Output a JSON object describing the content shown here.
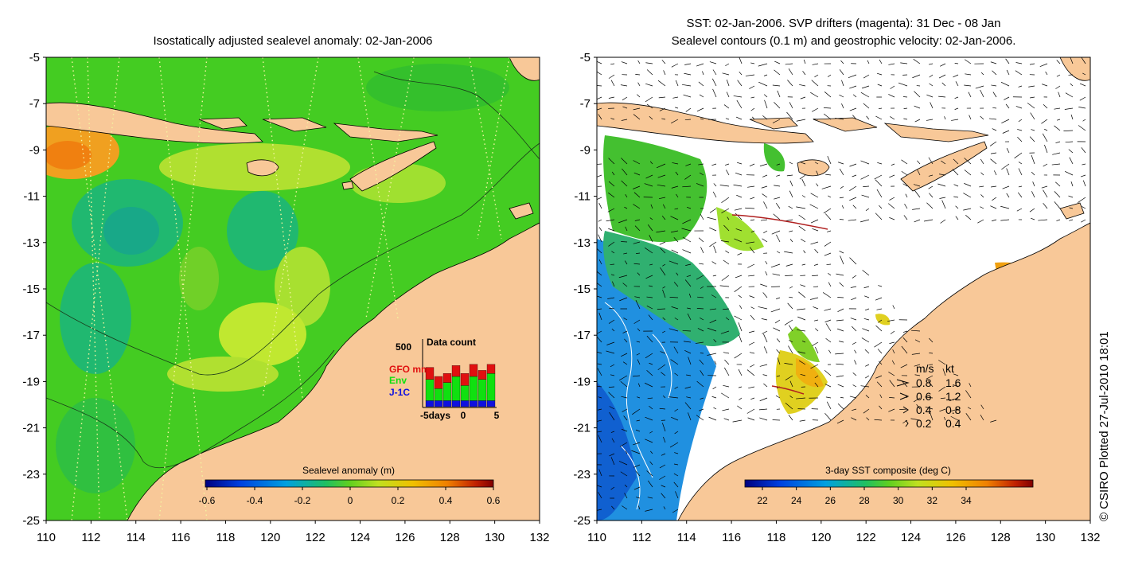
{
  "left_panel": {
    "title": "Isostatically adjusted sealevel anomaly: 02-Jan-2006",
    "y_ticks": [
      "-5",
      "-7",
      "-9",
      "-11",
      "-13",
      "-15",
      "-17",
      "-19",
      "-21",
      "-23",
      "-25"
    ],
    "x_ticks": [
      "110",
      "112",
      "114",
      "116",
      "118",
      "120",
      "122",
      "124",
      "126",
      "128",
      "130",
      "132"
    ],
    "colorbar": {
      "label": "Sealevel anomaly (m)",
      "ticks": [
        "-0.6",
        "-0.4",
        "-0.2",
        "0",
        "0.2",
        "0.4",
        "0.6"
      ]
    },
    "inset": {
      "axis_max": "500",
      "title": "Data count",
      "series": [
        {
          "name": "GFO mm",
          "color": "#e01010"
        },
        {
          "name": "Env",
          "color": "#10e010"
        },
        {
          "name": "J-1C",
          "color": "#1010e0"
        }
      ],
      "x_labels": [
        "-5days",
        "0",
        "5"
      ],
      "bars": [
        {
          "j1c": 0.1,
          "env": 0.35,
          "gfo": 0.2
        },
        {
          "j1c": 0.1,
          "env": 0.2,
          "gfo": 0.2
        },
        {
          "j1c": 0.1,
          "env": 0.3,
          "gfo": 0.15
        },
        {
          "j1c": 0.1,
          "env": 0.4,
          "gfo": 0.18
        },
        {
          "j1c": 0.1,
          "env": 0.25,
          "gfo": 0.2
        },
        {
          "j1c": 0.1,
          "env": 0.4,
          "gfo": 0.2
        },
        {
          "j1c": 0.1,
          "env": 0.35,
          "gfo": 0.15
        },
        {
          "j1c": 0.1,
          "env": 0.45,
          "gfo": 0.15
        }
      ]
    }
  },
  "right_panel": {
    "title_line1": "SST: 02-Jan-2006. SVP drifters (magenta): 31 Dec - 08 Jan",
    "title_line2": "Sealevel contours (0.1 m) and geostrophic velocity: 02-Jan-2006.",
    "y_ticks": [
      "-5",
      "-7",
      "-9",
      "-11",
      "-13",
      "-15",
      "-17",
      "-19",
      "-21",
      "-23",
      "-25"
    ],
    "x_ticks": [
      "110",
      "112",
      "114",
      "116",
      "118",
      "120",
      "122",
      "124",
      "126",
      "128",
      "130",
      "132"
    ],
    "colorbar": {
      "label": "3-day SST composite (deg C)",
      "ticks": [
        "22",
        "24",
        "26",
        "28",
        "30",
        "32",
        "34"
      ]
    },
    "velocity_legend": {
      "header_ms": "m/s",
      "header_kt": "kt",
      "rows": [
        {
          "ms": "0.8",
          "kt": "1.6"
        },
        {
          "ms": "0.6",
          "kt": "1.2"
        },
        {
          "ms": "0.4",
          "kt": "0.8"
        },
        {
          "ms": "0.2",
          "kt": "0.4"
        }
      ]
    }
  },
  "credit": "© CSIRO Plotted 27-Jul-2010 18:01",
  "colors": {
    "land": "#f8c898",
    "ocean_base": "#44cc22",
    "colorbar_scale": [
      "#000080",
      "#0040e0",
      "#00a0e0",
      "#20c060",
      "#60d020",
      "#c0e020",
      "#f0c000",
      "#f08000",
      "#c02000",
      "#800000"
    ]
  }
}
